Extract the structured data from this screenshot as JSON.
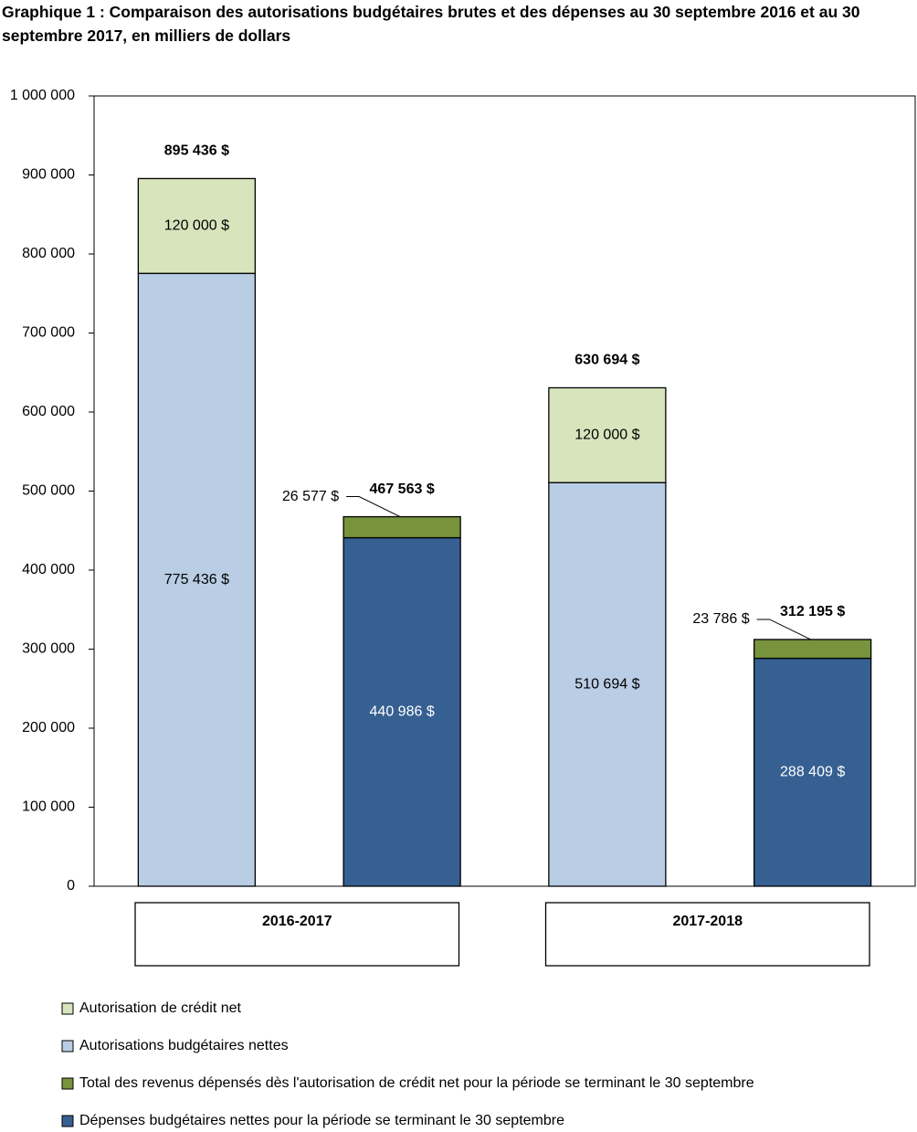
{
  "chart_data": {
    "type": "bar",
    "stacked": true,
    "title": "Graphique 1 : Comparaison des autorisations budgétaires brutes et des dépenses au 30 septembre 2016 et au 30 septembre 2017, en milliers de dollars",
    "groups": [
      "2016-2017",
      "2017-2018"
    ],
    "categories": [
      null,
      null,
      null,
      null
    ],
    "series": [
      {
        "name": "Autorisation de crédit net",
        "color": "#d8e4bc",
        "label_color": "#000000",
        "values": [
          120000,
          null,
          120000,
          null
        ],
        "value_labels": [
          "120 000 $",
          null,
          "120 000 $",
          null
        ]
      },
      {
        "name": "Autorisations budgétaires nettes",
        "color": "#b9cde5",
        "label_color": "#000000",
        "values": [
          775436,
          null,
          510694,
          null
        ],
        "value_labels": [
          "775 436 $",
          null,
          "510 694 $",
          null
        ]
      },
      {
        "name": "Total des revenus dépensés dès l'autorisation de crédit net pour la période se terminant le 30 septembre",
        "color": "#77933c",
        "label_color": "#000000",
        "values": [
          null,
          26577,
          null,
          23786
        ],
        "value_labels": [
          null,
          "26 577 $",
          null,
          "23 786 $"
        ]
      },
      {
        "name": "Dépenses budgétaires nettes pour la période se terminant le 30 septembre",
        "color": "#376092",
        "label_color": "#ffffff",
        "values": [
          null,
          440986,
          null,
          288409
        ],
        "value_labels": [
          null,
          "440 986 $",
          null,
          "288 409 $"
        ]
      }
    ],
    "totals": [
      895436,
      467563,
      630694,
      312195
    ],
    "total_labels": [
      "895 436 $",
      "467 563 $",
      "630 694 $",
      "312 195 $"
    ],
    "ylim": [
      0,
      1000000
    ],
    "yticks": [
      0,
      {
        "value": 100000,
        "label": "100 000"
      },
      {
        "value": 200000,
        "label": "200 000"
      },
      {
        "value": 300000,
        "label": "300 000"
      },
      {
        "value": 400000,
        "label": "400 000"
      },
      {
        "value": 500000,
        "label": "500 000"
      },
      {
        "value": 600000,
        "label": "600 000"
      },
      {
        "value": 700000,
        "label": "700 000"
      },
      {
        "value": 800000,
        "label": "800 000"
      },
      {
        "value": 900000,
        "label": "900 000"
      },
      {
        "value": 1000000,
        "label": "1 000 000"
      }
    ],
    "grid": false
  }
}
